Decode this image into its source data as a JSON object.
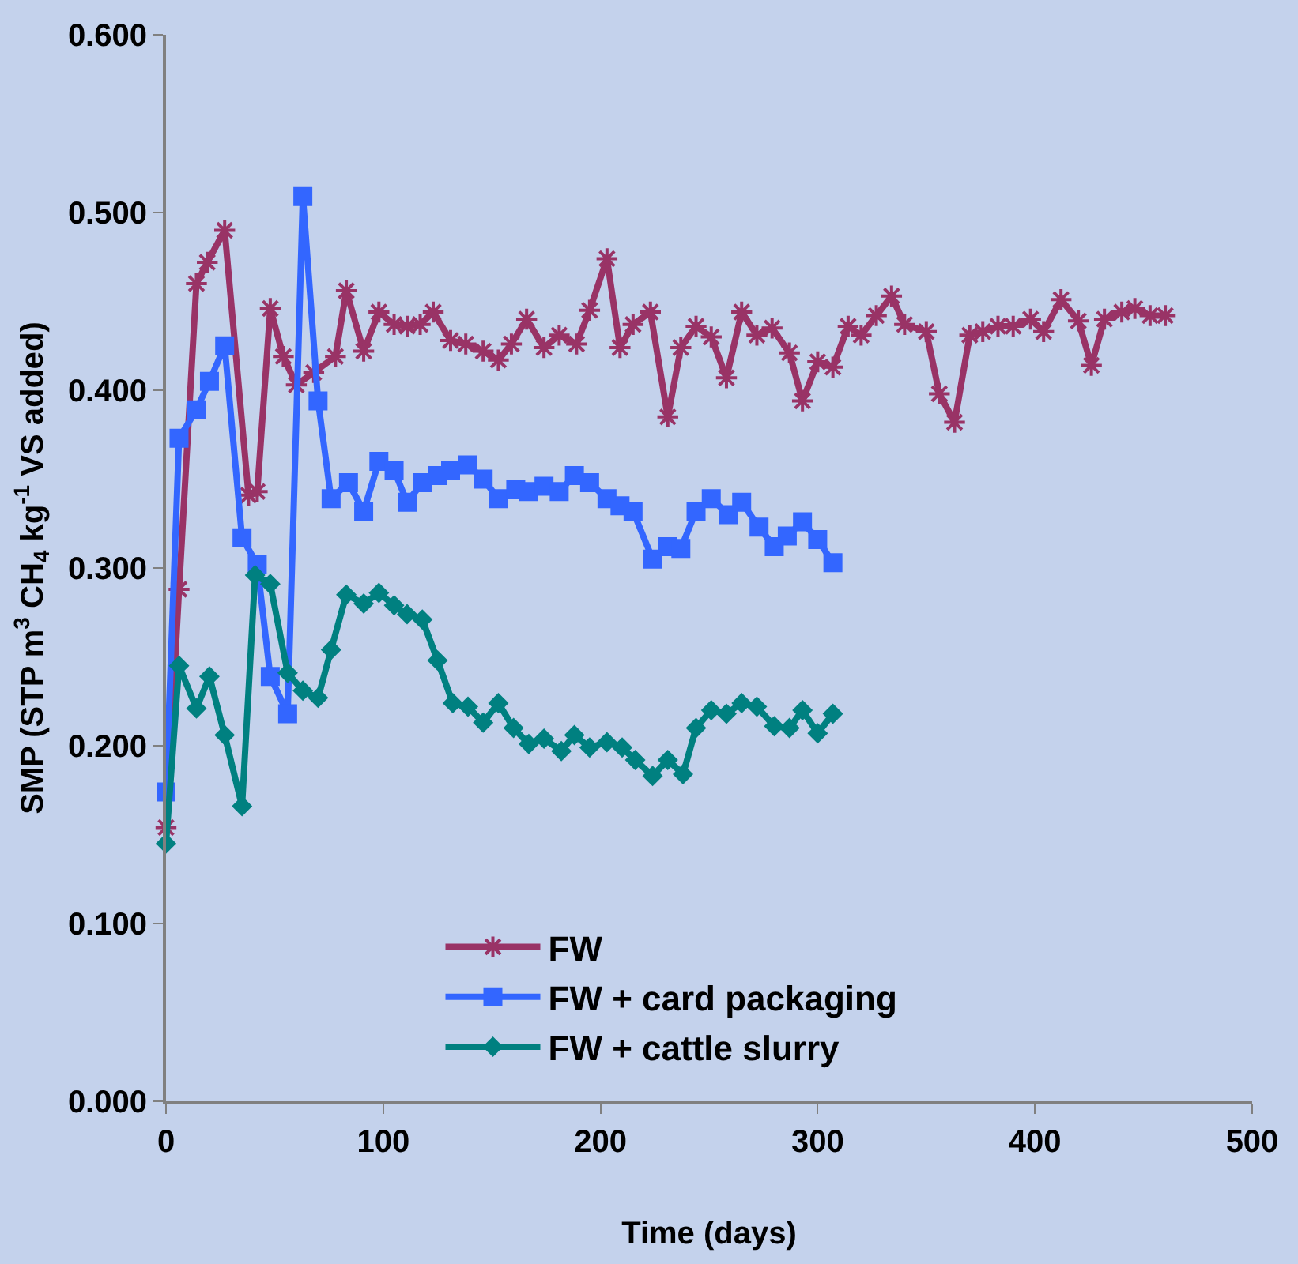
{
  "chart_data": {
    "type": "line",
    "xlabel": "Time (days)",
    "ylabel": "SMP (STP m$^{3}$ CH$_{4}$ kg$^{-1}$ VS added)",
    "xlim": [
      0,
      500
    ],
    "xticks": [
      0,
      100,
      200,
      300,
      400,
      500
    ],
    "ylim": [
      0,
      0.6
    ],
    "yticks": [
      {
        "value": 0,
        "label": "0.000"
      },
      {
        "value": 0.1,
        "label": "0.100"
      },
      {
        "value": 0.2,
        "label": "0.200"
      },
      {
        "value": 0.3,
        "label": "0.300"
      },
      {
        "value": 0.4,
        "label": "0.400"
      },
      {
        "value": 0.5,
        "label": "0.500"
      },
      {
        "value": 0.6,
        "label": "0.600"
      }
    ],
    "grid": false,
    "legend": "bottom",
    "line_style": "solid",
    "series": [
      {
        "name": "FW",
        "color": "#993366",
        "marker": "cross",
        "x": [
          0,
          6,
          14,
          19,
          27,
          38,
          42,
          48,
          54,
          60,
          68,
          78,
          83,
          91,
          98,
          105,
          111,
          117,
          123,
          131,
          138,
          146,
          153,
          159,
          166,
          174,
          181,
          189,
          195,
          203,
          209,
          215,
          223,
          231,
          237,
          244,
          251,
          258,
          265,
          272,
          279,
          287,
          293,
          300,
          307,
          314,
          320,
          327,
          334,
          340,
          350,
          356,
          363,
          370,
          376,
          383,
          390,
          398,
          404,
          412,
          420,
          426,
          432,
          440,
          446,
          453,
          460
        ],
        "values": [
          0.154,
          0.288,
          0.46,
          0.472,
          0.49,
          0.341,
          0.343,
          0.446,
          0.419,
          0.403,
          0.41,
          0.419,
          0.456,
          0.422,
          0.444,
          0.437,
          0.436,
          0.437,
          0.444,
          0.428,
          0.426,
          0.422,
          0.417,
          0.426,
          0.44,
          0.424,
          0.431,
          0.426,
          0.445,
          0.474,
          0.424,
          0.437,
          0.444,
          0.385,
          0.424,
          0.436,
          0.43,
          0.407,
          0.444,
          0.431,
          0.435,
          0.421,
          0.394,
          0.416,
          0.413,
          0.436,
          0.431,
          0.442,
          0.453,
          0.437,
          0.433,
          0.398,
          0.382,
          0.431,
          0.433,
          0.436,
          0.436,
          0.44,
          0.433,
          0.451,
          0.439,
          0.414,
          0.44,
          0.444,
          0.446,
          0.442,
          0.442
        ]
      },
      {
        "name": "FW + card packaging",
        "color": "#3366ff",
        "marker": "square",
        "x": [
          0,
          6,
          14,
          20,
          27,
          35,
          42,
          48,
          56,
          63,
          70,
          76,
          84,
          91,
          98,
          105,
          111,
          118,
          125,
          131,
          139,
          146,
          153,
          161,
          167,
          174,
          181,
          188,
          195,
          203,
          209,
          215,
          224,
          231,
          237,
          244,
          251,
          259,
          265,
          273,
          280,
          286,
          293,
          300,
          307
        ],
        "values": [
          0.174,
          0.373,
          0.389,
          0.405,
          0.425,
          0.317,
          0.302,
          0.239,
          0.218,
          0.509,
          0.394,
          0.339,
          0.348,
          0.332,
          0.36,
          0.355,
          0.337,
          0.348,
          0.352,
          0.355,
          0.358,
          0.35,
          0.339,
          0.344,
          0.343,
          0.346,
          0.343,
          0.352,
          0.348,
          0.339,
          0.335,
          0.332,
          0.305,
          0.312,
          0.311,
          0.332,
          0.339,
          0.33,
          0.337,
          0.323,
          0.312,
          0.318,
          0.326,
          0.316,
          0.303
        ]
      },
      {
        "name": "FW + cattle slurry",
        "color": "#008080",
        "marker": "diamond",
        "x": [
          0,
          6,
          14,
          20,
          27,
          35,
          41,
          48,
          56,
          63,
          70,
          76,
          83,
          91,
          98,
          105,
          111,
          118,
          125,
          132,
          139,
          146,
          153,
          160,
          167,
          174,
          182,
          188,
          195,
          203,
          210,
          216,
          224,
          231,
          238,
          244,
          251,
          258,
          265,
          272,
          280,
          287,
          293,
          300,
          307
        ],
        "values": [
          0.145,
          0.245,
          0.221,
          0.239,
          0.206,
          0.166,
          0.296,
          0.291,
          0.241,
          0.231,
          0.227,
          0.254,
          0.285,
          0.28,
          0.286,
          0.279,
          0.274,
          0.271,
          0.248,
          0.224,
          0.222,
          0.213,
          0.224,
          0.21,
          0.201,
          0.204,
          0.197,
          0.206,
          0.199,
          0.202,
          0.199,
          0.192,
          0.183,
          0.192,
          0.184,
          0.21,
          0.22,
          0.218,
          0.224,
          0.222,
          0.211,
          0.21,
          0.22,
          0.207,
          0.218
        ]
      }
    ]
  }
}
